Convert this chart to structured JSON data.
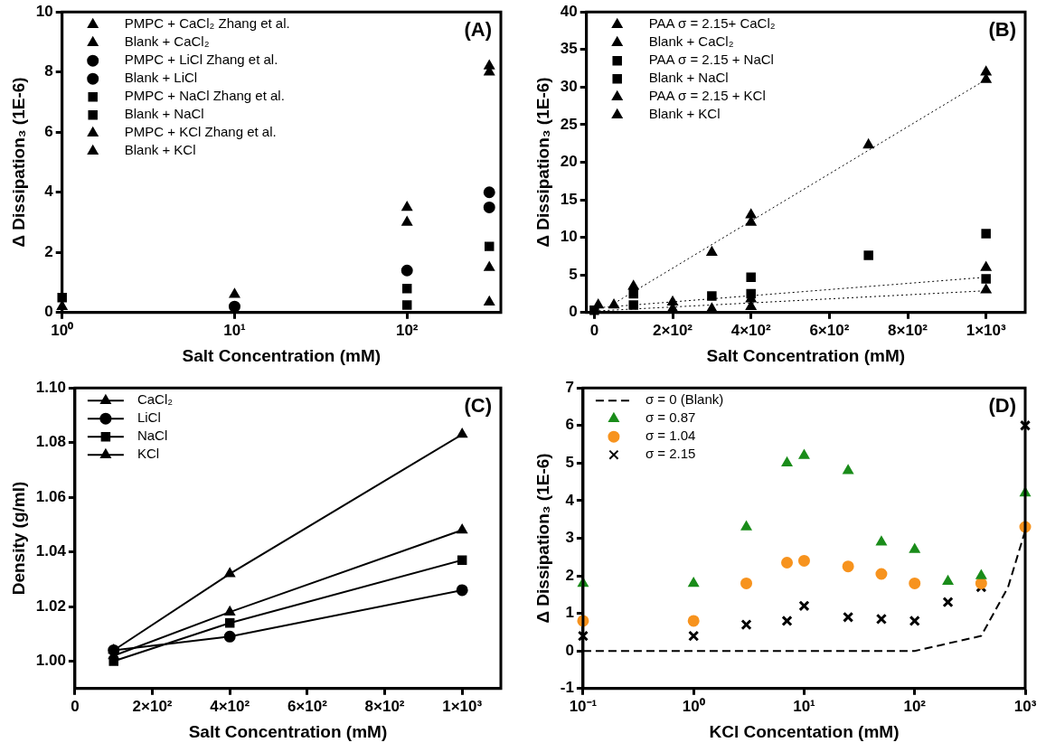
{
  "chart_data": [
    {
      "type": "scatter",
      "xlabel": "Salt Concentration (mM)",
      "ylabel": "Δ Dissipation₃ (1E-6)",
      "annotations": [
        "(A)"
      ],
      "log": "x",
      "grid": false,
      "legend": "top left",
      "xlim": [
        1,
        350
      ],
      "xticks": [
        {
          "value": 1,
          "label": "10⁰"
        },
        {
          "value": 10,
          "label": "10¹"
        },
        {
          "value": 100,
          "label": "10²"
        }
      ],
      "ylim": [
        0,
        10
      ],
      "yticks": [
        0,
        2,
        4,
        6,
        8,
        10
      ],
      "x": [
        1,
        10,
        100,
        300
      ],
      "series": [
        {
          "name": "PMPC + CaCl₂ Zhang et al.",
          "color": "#000000",
          "marker": "triangle",
          "values": [
            0.2,
            null,
            3.0,
            8.2
          ]
        },
        {
          "name": "Blank + CaCl₂",
          "color": "#000000",
          "marker": "triangle",
          "values": [
            null,
            0.6,
            3.5,
            8.0
          ]
        },
        {
          "name": "PMPC + LiCl Zhang et al.",
          "color": "#000000",
          "marker": "circle",
          "values": [
            null,
            0.2,
            1.4,
            3.5
          ]
        },
        {
          "name": "Blank + LiCl",
          "color": "#000000",
          "marker": "circle",
          "x": [
            300
          ],
          "values": [
            4.0
          ]
        },
        {
          "name": "PMPC + NaCl Zhang et al.",
          "color": "#000000",
          "marker": "square",
          "values": [
            null,
            null,
            0.25,
            2.2
          ]
        },
        {
          "name": "Blank + NaCl",
          "color": "#000000",
          "marker": "square",
          "values": [
            0.5,
            null,
            0.8,
            null
          ]
        },
        {
          "name": "PMPC + KCl Zhang et al.",
          "color": "#000000",
          "marker": "triangle",
          "values": [
            null,
            null,
            null,
            1.5
          ]
        },
        {
          "name": "Blank + KCl",
          "color": "#000000",
          "marker": "triangle",
          "values": [
            null,
            null,
            null,
            0.35
          ]
        }
      ]
    },
    {
      "type": "scatter",
      "xlabel": "Salt Concentration (mM)",
      "ylabel": "Δ Dissipation₃ (1E-6)",
      "annotations": [
        "(B)"
      ],
      "grid": false,
      "legend": "top left",
      "xlim": [
        -20,
        1100
      ],
      "xticks": [
        0,
        {
          "value": 200,
          "label": "2×10²"
        },
        {
          "value": 400,
          "label": "4×10²"
        },
        {
          "value": 600,
          "label": "6×10²"
        },
        {
          "value": 800,
          "label": "8×10²"
        },
        {
          "value": 1000,
          "label": "1×10³"
        }
      ],
      "ylim": [
        0,
        40
      ],
      "yticks": [
        0,
        5,
        10,
        15,
        20,
        25,
        30,
        35,
        40
      ],
      "series": [
        {
          "name": "PAA σ = 2.15+ CaCl₂",
          "color": "#000000",
          "marker": "triangle",
          "x": [
            10,
            100,
            400,
            700,
            1000
          ],
          "values": [
            1.0,
            3.5,
            13.0,
            22.3,
            31.0
          ]
        },
        {
          "name": "Blank + CaCl₂",
          "color": "#000000",
          "marker": "triangle",
          "x": [
            300,
            400,
            1000
          ],
          "values": [
            8.0,
            12.0,
            32.0
          ]
        },
        {
          "name": "PAA σ = 2.15 + NaCl",
          "color": "#000000",
          "marker": "square",
          "x": [
            0,
            100,
            400,
            700,
            1000
          ],
          "values": [
            0.3,
            2.5,
            4.7,
            7.6,
            10.5
          ]
        },
        {
          "name": "Blank + NaCl",
          "color": "#000000",
          "marker": "square",
          "x": [
            100,
            300,
            400,
            1000
          ],
          "values": [
            1.0,
            2.2,
            2.5,
            4.5
          ]
        },
        {
          "name": "PAA σ = 2.15 + KCl",
          "color": "#000000",
          "marker": "triangle",
          "x": [
            50,
            200,
            400,
            1000
          ],
          "values": [
            1.0,
            1.4,
            1.8,
            6.0
          ]
        },
        {
          "name": "Blank + KCl",
          "color": "#000000",
          "marker": "triangle",
          "x": [
            200,
            300,
            400,
            1000
          ],
          "values": [
            0.5,
            0.5,
            0.8,
            3.0
          ]
        },
        {
          "type": "line",
          "color": "#000000",
          "marker": "none",
          "line_style": "dotted",
          "x": [
            50,
            1000
          ],
          "values": [
            1.2,
            31.0
          ]
        },
        {
          "type": "line",
          "color": "#000000",
          "marker": "none",
          "line_style": "dotted",
          "x": [
            0,
            1000
          ],
          "values": [
            0.6,
            4.7
          ]
        },
        {
          "type": "line",
          "color": "#000000",
          "marker": "none",
          "line_style": "dotted",
          "x": [
            0,
            1000
          ],
          "values": [
            0.2,
            2.9
          ]
        }
      ]
    },
    {
      "type": "line",
      "xlabel": "Salt Concentration (mM)",
      "ylabel": "Density (g/ml)",
      "annotations": [
        "(C)"
      ],
      "grid": false,
      "legend": "top left",
      "xlim": [
        0,
        1100
      ],
      "xticks": [
        0,
        {
          "value": 200,
          "label": "2×10²"
        },
        {
          "value": 400,
          "label": "4×10²"
        },
        {
          "value": 600,
          "label": "6×10²"
        },
        {
          "value": 800,
          "label": "8×10²"
        },
        {
          "value": 1000,
          "label": "1×10³"
        }
      ],
      "ylim": [
        0.99,
        1.1
      ],
      "yticks": [
        {
          "value": 1,
          "label": "1.00"
        },
        {
          "value": 1.02,
          "label": "1.02"
        },
        {
          "value": 1.04,
          "label": "1.04"
        },
        {
          "value": 1.06,
          "label": "1.06"
        },
        {
          "value": 1.08,
          "label": "1.08"
        },
        {
          "value": 1.1,
          "label": "1.10"
        }
      ],
      "x": [
        100,
        400,
        1000
      ],
      "line_style": "solid",
      "series": [
        {
          "name": "CaCl₂",
          "color": "#000000",
          "marker": "triangle",
          "values": [
            1.004,
            1.032,
            1.083
          ]
        },
        {
          "name": "LiCl",
          "color": "#000000",
          "marker": "circle",
          "values": [
            1.004,
            1.009,
            1.026
          ]
        },
        {
          "name": "NaCl",
          "color": "#000000",
          "marker": "square",
          "values": [
            1.0,
            1.014,
            1.037
          ]
        },
        {
          "name": "KCl",
          "color": "#000000",
          "marker": "triangle",
          "values": [
            1.002,
            1.018,
            1.048
          ]
        }
      ]
    },
    {
      "type": "scatter",
      "xlabel": "KCl Concentation (mM)",
      "ylabel": "Δ Dissipation₃ (1E-6)",
      "annotations": [
        "(D)"
      ],
      "log": "x",
      "grid": false,
      "legend": "top left",
      "xlim": [
        0.1,
        1000
      ],
      "xticks": [
        {
          "value": 0.1,
          "label": "10⁻¹"
        },
        {
          "value": 1,
          "label": "10⁰"
        },
        {
          "value": 10,
          "label": "10¹"
        },
        {
          "value": 100,
          "label": "10²"
        },
        {
          "value": 1000,
          "label": "10³"
        }
      ],
      "ylim": [
        -1,
        7
      ],
      "yticks": [
        -1,
        0,
        1,
        2,
        3,
        4,
        5,
        6,
        7
      ],
      "x": [
        0.1,
        1,
        3,
        7,
        10,
        25,
        50,
        100,
        200,
        400,
        1000
      ],
      "series": [
        {
          "name": "σ = 0 (Blank)",
          "type": "line",
          "color": "#000000",
          "marker": "none",
          "line_style": "dashed",
          "x": [
            0.1,
            1,
            100,
            400,
            700,
            1000
          ],
          "values": [
            0,
            0,
            0,
            0.4,
            1.7,
            3.2
          ]
        },
        {
          "name": "σ = 0.87",
          "color": "#1a8c1a",
          "marker": "triangle",
          "values": [
            1.8,
            1.8,
            3.3,
            5.0,
            5.2,
            4.8,
            2.9,
            2.7,
            1.85,
            2.0,
            4.2
          ]
        },
        {
          "name": "σ = 1.04",
          "color": "#f7931e",
          "marker": "circle",
          "x": [
            0.1,
            1,
            3,
            7,
            10,
            25,
            50,
            100,
            400,
            1000
          ],
          "values": [
            0.8,
            0.8,
            1.8,
            2.35,
            2.4,
            2.25,
            2.05,
            1.8,
            1.8,
            3.3
          ]
        },
        {
          "name": "σ = 2.15",
          "color": "#000000",
          "marker": "cross",
          "values": [
            0.4,
            0.4,
            0.7,
            0.8,
            1.2,
            0.9,
            0.85,
            0.8,
            1.3,
            1.7,
            6.0
          ]
        }
      ]
    }
  ]
}
